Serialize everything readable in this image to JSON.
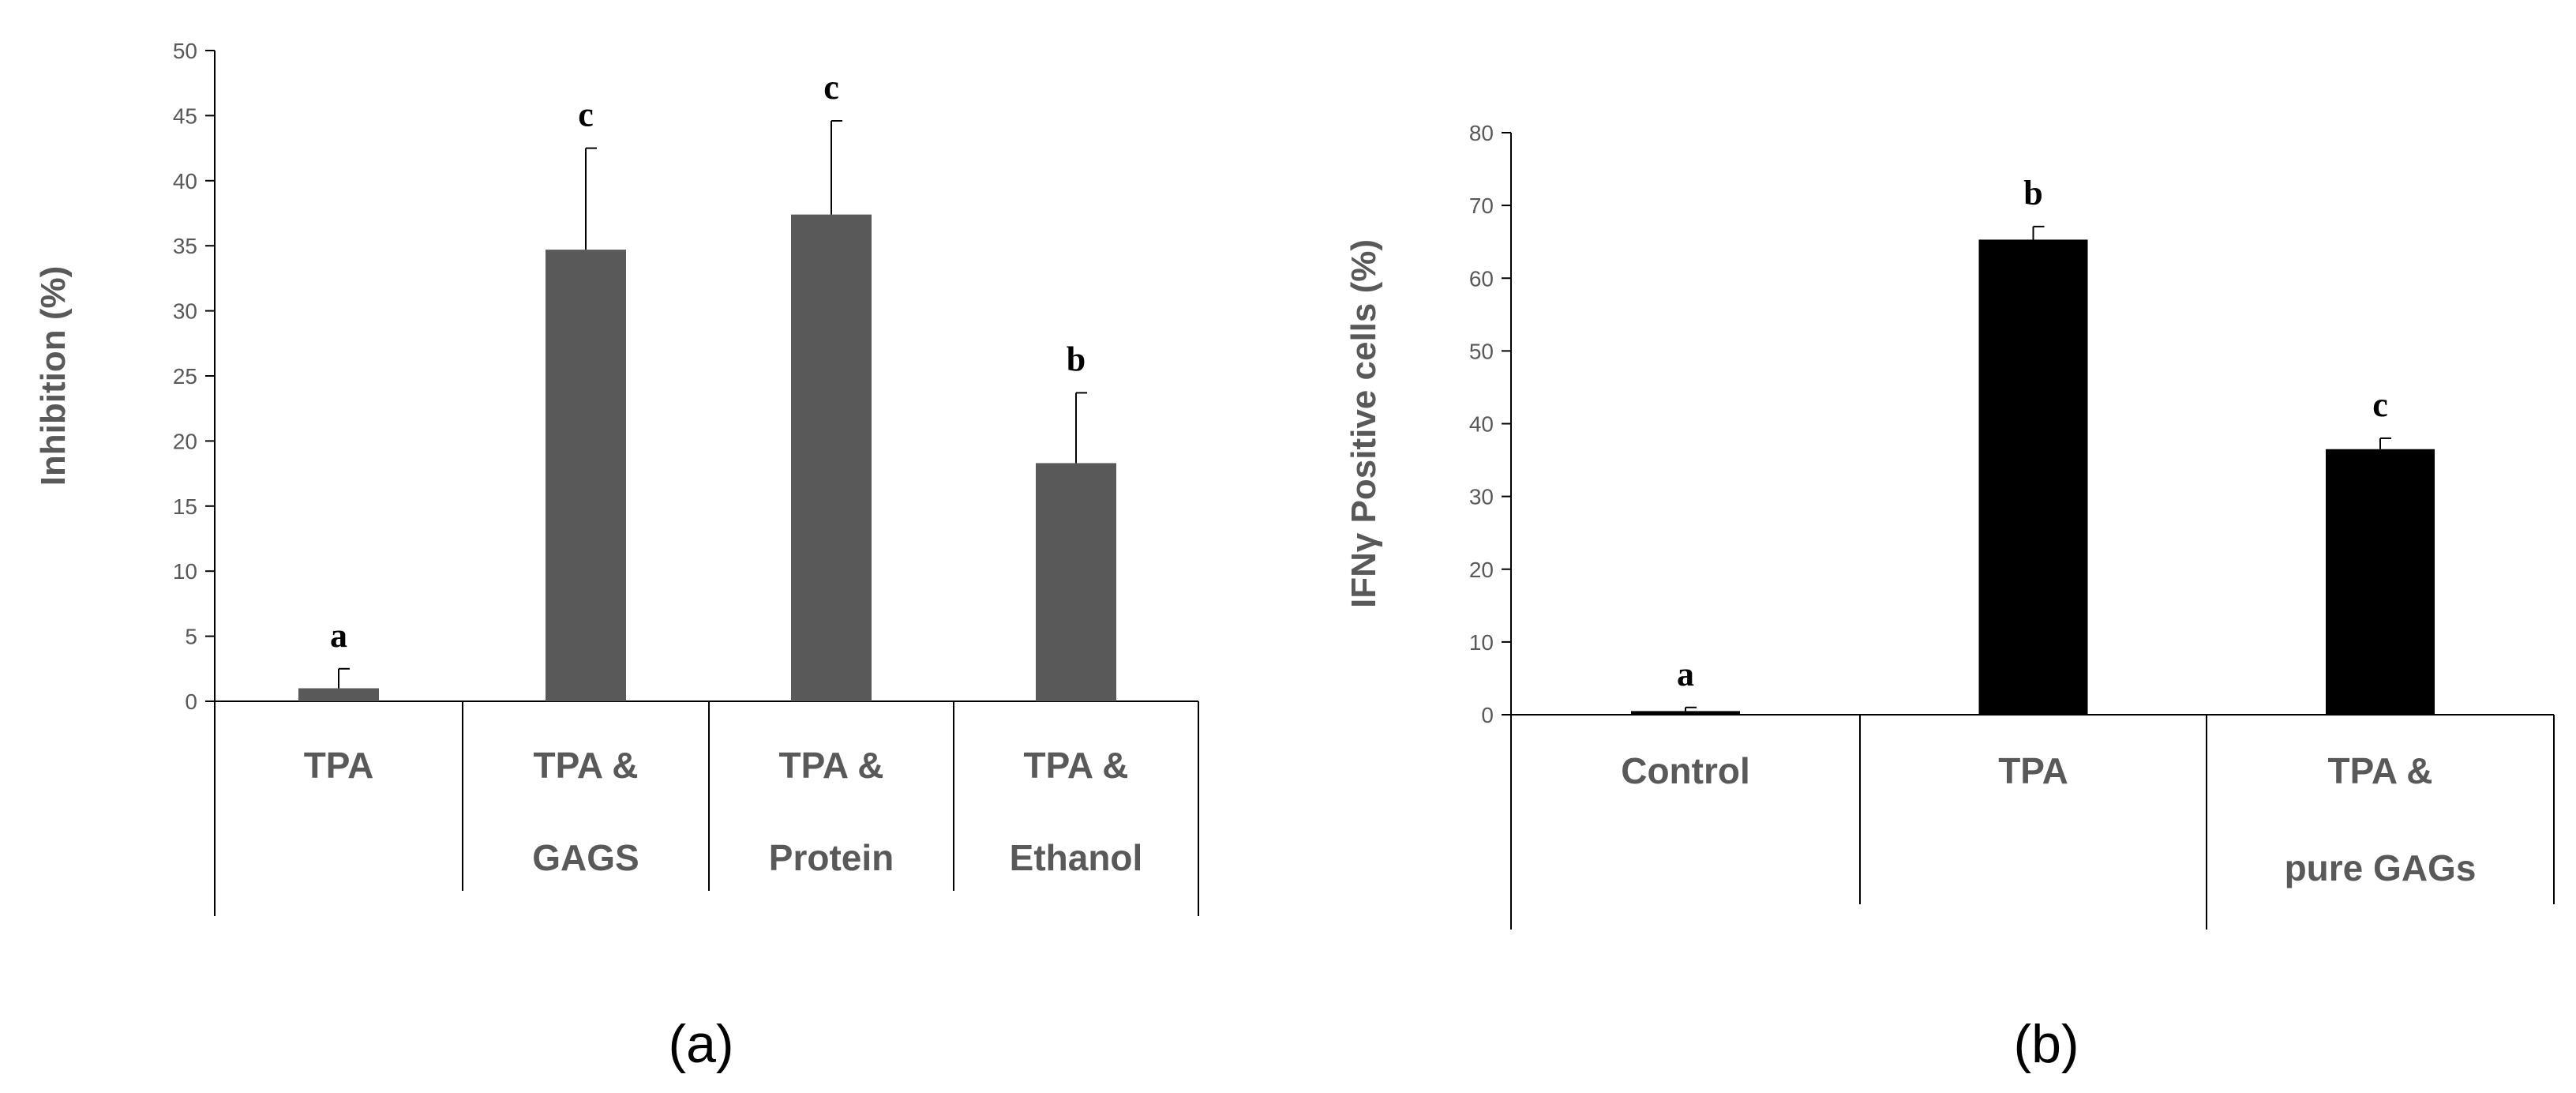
{
  "chart_data": [
    {
      "type": "bar",
      "panel_label": "(a)",
      "title": "",
      "xlabel": "",
      "ylabel": "Inhibition (%)",
      "ylim": [
        0,
        50
      ],
      "ytick_step": 5,
      "categories": [
        {
          "lines": [
            "TPA"
          ]
        },
        {
          "lines": [
            "TPA &",
            "GAGS"
          ]
        },
        {
          "lines": [
            "TPA &",
            "Protein"
          ]
        },
        {
          "lines": [
            "TPA &",
            "Ethanol"
          ]
        }
      ],
      "values": [
        1.0,
        34.7,
        37.4,
        18.3
      ],
      "errors": [
        1.5,
        7.8,
        7.2,
        5.4
      ],
      "significance": [
        "a",
        "c",
        "c",
        "b"
      ],
      "bar_color": "#595959",
      "grid": false,
      "legend": "none"
    },
    {
      "type": "bar",
      "panel_label": "(b)",
      "title": "",
      "xlabel": "",
      "ylabel": "IFNγ Positive cells (%)",
      "ylim": [
        0,
        80
      ],
      "ytick_step": 10,
      "categories": [
        {
          "lines": [
            "Control"
          ]
        },
        {
          "lines": [
            "TPA"
          ]
        },
        {
          "lines": [
            "TPA &",
            "pure GAGs"
          ]
        }
      ],
      "values": [
        0.5,
        65.3,
        36.5
      ],
      "errors": [
        0.5,
        1.8,
        1.5
      ],
      "significance": [
        "a",
        "b",
        "c"
      ],
      "bar_color": "#000000",
      "grid": false,
      "legend": "none"
    }
  ]
}
